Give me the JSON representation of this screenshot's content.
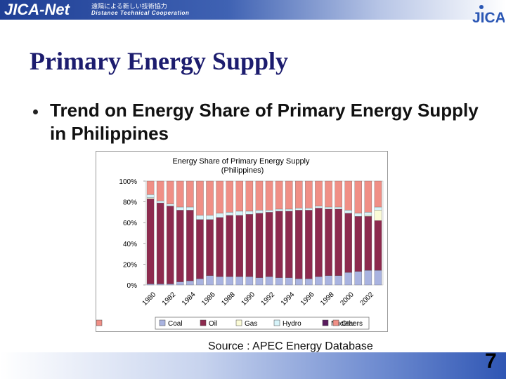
{
  "header": {
    "logo_text": "JICA-Net",
    "logo_jp": "遠隔による新しい技術協力",
    "logo_sub": "Distance Technical Cooperation",
    "jica_logo_text": "JICA"
  },
  "slide": {
    "title": "Primary Energy Supply",
    "bullet": "Trend on Energy Share of Primary Energy Supply in Philippines",
    "source": "Source : APEC Energy Database",
    "page_number": "7"
  },
  "colors": {
    "Coal": "#a9b3e0",
    "Oil": "#8d2a4e",
    "Gas": "#fbfbd6",
    "Hydro": "#d6f3f9",
    "Nuclear": "#5a1b5e",
    "Others": "#f08f86"
  },
  "chart_data": {
    "type": "bar",
    "stacked": true,
    "title": "Energy Share of Primary Energy Supply",
    "subtitle": "(Philippines)",
    "categories": [
      "1980",
      "1981",
      "1982",
      "1983",
      "1984",
      "1985",
      "1986",
      "1987",
      "1988",
      "1989",
      "1990",
      "1991",
      "1992",
      "1993",
      "1994",
      "1995",
      "1996",
      "1997",
      "1998",
      "1999",
      "2000",
      "2001",
      "2002",
      "2003"
    ],
    "x_tick_labels": [
      "1980",
      "1982",
      "1984",
      "1986",
      "1988",
      "1990",
      "1992",
      "1994",
      "1996",
      "1998",
      "2000",
      "2002"
    ],
    "y_tick_labels": [
      "100%",
      "80%",
      "60%",
      "40%",
      "20%",
      "0%"
    ],
    "ylim": [
      0,
      100
    ],
    "legend_position": "bottom",
    "series": [
      {
        "name": "Coal",
        "values": [
          1,
          1,
          1,
          3,
          4,
          6,
          9,
          8,
          8,
          8,
          8,
          7,
          8,
          7,
          7,
          6,
          6,
          8,
          9,
          9,
          12,
          13,
          14,
          14
        ]
      },
      {
        "name": "Oil",
        "values": [
          82,
          78,
          75,
          69,
          68,
          57,
          54,
          57,
          59,
          59,
          60,
          62,
          62,
          64,
          64,
          66,
          66,
          66,
          64,
          64,
          57,
          53,
          52,
          48
        ]
      },
      {
        "name": "Gas",
        "values": [
          1,
          0,
          0,
          0,
          0,
          0,
          0,
          0,
          0,
          0,
          0,
          0,
          0,
          0,
          0,
          0,
          0,
          0,
          0,
          0,
          0,
          0,
          1,
          10
        ]
      },
      {
        "name": "Hydro",
        "values": [
          3,
          2,
          2,
          3,
          3,
          4,
          4,
          4,
          3,
          4,
          3,
          3,
          2,
          2,
          2,
          2,
          2,
          2,
          2,
          2,
          3,
          3,
          3,
          3
        ]
      },
      {
        "name": "Nuclear",
        "values": [
          0,
          0,
          0,
          0,
          0,
          0,
          0,
          0,
          0,
          0,
          0,
          0,
          0,
          0,
          0,
          0,
          0,
          0,
          0,
          0,
          0,
          0,
          0,
          0
        ]
      },
      {
        "name": "Others",
        "values": [
          13,
          19,
          22,
          25,
          25,
          33,
          33,
          31,
          30,
          29,
          29,
          28,
          28,
          27,
          27,
          26,
          26,
          24,
          25,
          25,
          28,
          31,
          30,
          25
        ]
      }
    ]
  }
}
